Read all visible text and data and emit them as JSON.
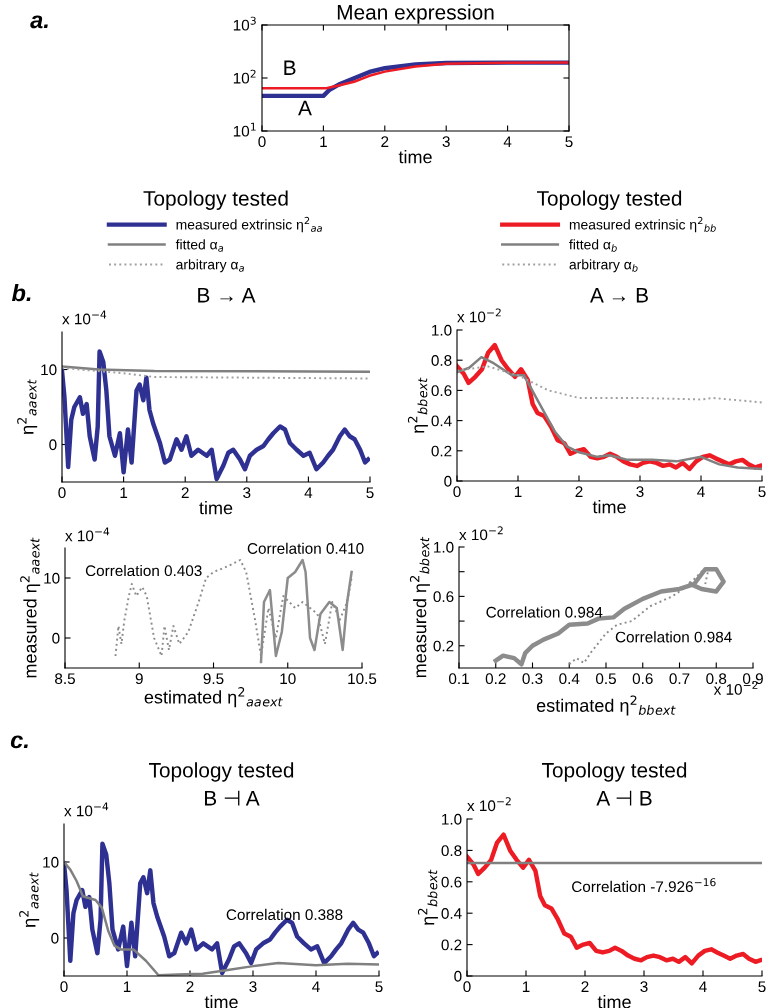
{
  "chart_data": [
    {
      "type": "line",
      "title": "Mean expression",
      "xlabel": "time",
      "log": true,
      "xlim": [
        0,
        5
      ],
      "xticks": [
        0,
        1,
        2,
        3,
        4,
        5
      ],
      "ylim": [
        10,
        1000
      ],
      "yticks": [
        {
          "value": 10,
          "label": "10$^{1}$"
        },
        {
          "value": 100,
          "label": "10$^{2}$"
        },
        {
          "value": 1000,
          "label": "10$^{3}$"
        }
      ],
      "series": [
        {
          "color": "#2e3192",
          "x": [
            0,
            1,
            1.1,
            1.25,
            1.5,
            1.75,
            2,
            2.5,
            3,
            4,
            5
          ],
          "values": [
            46,
            46,
            60,
            75,
            99,
            130,
            153,
            180,
            192,
            195,
            195
          ]
        },
        {
          "color": "#ed1c24",
          "x": [
            0,
            1.05,
            1.1,
            1.25,
            1.5,
            1.75,
            2,
            2.5,
            3,
            4,
            5
          ],
          "values": [
            64,
            64,
            66,
            72,
            85,
            110,
            132,
            165,
            185,
            193,
            197
          ]
        }
      ],
      "annotations": [
        "a.",
        "B",
        "A"
      ]
    },
    {
      "type": "line",
      "subtitle": "B → A",
      "legend_title": "Topology tested",
      "legend": "top",
      "xlabel": "time",
      "ylabel": "η$^{2}$$_{aa}$$_{ext}$",
      "xlim": [
        0,
        5
      ],
      "xticks": [
        0,
        1,
        2,
        3,
        4,
        5
      ],
      "ylim": [
        -5,
        15
      ],
      "yticks": [
        0,
        10
      ],
      "series": [
        {
          "name": "measured extrinsic η$^{2}$$_{aa}$",
          "color": "#2e3192",
          "x": [
            0,
            0.04,
            0.1,
            0.15,
            0.2,
            0.29,
            0.34,
            0.4,
            0.45,
            0.53,
            0.58,
            0.61,
            0.67,
            0.72,
            0.77,
            0.86,
            0.94,
            1.0,
            1.07,
            1.13,
            1.21,
            1.26,
            1.32,
            1.37,
            1.42,
            1.48,
            1.59,
            1.67,
            1.75,
            1.86,
            1.94,
            2.02,
            2.1,
            2.21,
            2.35,
            2.43,
            2.51,
            2.62,
            2.7,
            2.78,
            2.89,
            2.97,
            3.05,
            3.16,
            3.27,
            3.35,
            3.43,
            3.54,
            3.62,
            3.7,
            3.81,
            3.92,
            4.02,
            4.13,
            4.24,
            4.32,
            4.4,
            4.51,
            4.59,
            4.67,
            4.75,
            4.84,
            4.92,
            4.97
          ],
          "values": [
            9.8,
            6.3,
            -3.0,
            3.3,
            5.0,
            6.3,
            4.1,
            5.4,
            1.1,
            -2,
            2.4,
            12.4,
            11,
            7.2,
            1.1,
            -1.5,
            1.5,
            -3.7,
            2,
            -2.4,
            7.2,
            8,
            5.9,
            8.9,
            4.6,
            2.8,
            0.2,
            -2.4,
            -2,
            0.7,
            -0.7,
            1.1,
            -1.5,
            -0.7,
            -1.5,
            -0.7,
            -4.6,
            -2.8,
            -1.1,
            -0.7,
            -2,
            -3.3,
            -1.5,
            -0.7,
            -0.2,
            0.7,
            1.5,
            2.4,
            2,
            0.2,
            -0.7,
            -1.5,
            -1.1,
            -3.3,
            -2.4,
            -1.5,
            -0.7,
            1.1,
            2,
            1.1,
            0.7,
            -0.7,
            -2.4,
            -2
          ]
        },
        {
          "name": "fitted α$_{a}$",
          "color": "#808080",
          "x": [
            0,
            0.6,
            1.5,
            5
          ],
          "values": [
            10.4,
            10,
            9.8,
            9.7
          ]
        },
        {
          "name": "arbitrary α$_{a}$",
          "color": "#a0a0a0",
          "line_style": "dotted",
          "x": [
            0,
            1,
            1.5,
            5
          ],
          "values": [
            10.2,
            9.5,
            9.0,
            8.8
          ]
        }
      ],
      "annotations": [
        "x 10$^{−4}$",
        "b."
      ]
    },
    {
      "type": "line",
      "subtitle": "A → B",
      "legend_title": "Topology tested",
      "legend": "top",
      "xlabel": "time",
      "ylabel": "η$^{2}$$_{bb}$$_{ext}$",
      "xlim": [
        0,
        5
      ],
      "xticks": [
        0,
        1,
        2,
        3,
        4,
        5
      ],
      "ylim": [
        0,
        1.0
      ],
      "yticks": [
        0,
        0.2,
        0.4,
        0.6,
        0.8,
        {
          "value": 1.0,
          "label": "1.0"
        }
      ],
      "series": [
        {
          "name": "measured extrinsic η$^{2}$$_{bb}$",
          "color": "#ed1c24",
          "x": [
            0,
            0.11,
            0.19,
            0.3,
            0.41,
            0.51,
            0.62,
            0.73,
            0.84,
            0.95,
            1.05,
            1.16,
            1.24,
            1.32,
            1.43,
            1.54,
            1.65,
            1.76,
            1.86,
            1.97,
            2.08,
            2.19,
            2.3,
            2.41,
            2.51,
            2.62,
            2.73,
            2.84,
            2.95,
            3.05,
            3.16,
            3.27,
            3.38,
            3.49,
            3.59,
            3.7,
            3.81,
            3.92,
            4.03,
            4.14,
            4.24,
            4.35,
            4.46,
            4.57,
            4.68,
            4.78,
            4.89,
            4.97
          ],
          "values": [
            0.76,
            0.71,
            0.65,
            0.69,
            0.74,
            0.85,
            0.9,
            0.8,
            0.74,
            0.69,
            0.74,
            0.67,
            0.51,
            0.45,
            0.43,
            0.36,
            0.27,
            0.25,
            0.18,
            0.2,
            0.21,
            0.16,
            0.15,
            0.16,
            0.18,
            0.16,
            0.13,
            0.11,
            0.1,
            0.12,
            0.13,
            0.12,
            0.1,
            0.11,
            0.09,
            0.12,
            0.08,
            0.13,
            0.16,
            0.17,
            0.15,
            0.13,
            0.11,
            0.13,
            0.14,
            0.11,
            0.09,
            0.1
          ]
        },
        {
          "name": "fitted α$_{b}$",
          "color": "#808080",
          "x": [
            0,
            0.2,
            0.4,
            0.6,
            0.9,
            1.1,
            1.3,
            1.6,
            1.8,
            2.0,
            2.3,
            2.5,
            2.8,
            3.2,
            3.6,
            4.0,
            4.3,
            4.6,
            5
          ],
          "values": [
            0.72,
            0.75,
            0.82,
            0.78,
            0.7,
            0.7,
            0.55,
            0.33,
            0.23,
            0.19,
            0.16,
            0.17,
            0.14,
            0.14,
            0.13,
            0.16,
            0.11,
            0.09,
            0.08
          ]
        },
        {
          "name": "arbitrary α$_{b}$",
          "color": "#a0a0a0",
          "line_style": "dotted",
          "x": [
            0,
            0.5,
            1,
            1.5,
            2,
            2.5,
            3,
            4,
            4.2,
            5
          ],
          "values": [
            0.73,
            0.76,
            0.7,
            0.6,
            0.55,
            0.55,
            0.55,
            0.54,
            0.55,
            0.52
          ]
        }
      ],
      "annotations": [
        "x 10$^{−2}$"
      ]
    },
    {
      "type": "line",
      "xlabel": "estimated η$^{2}$$_{aa}$$_{ext}$",
      "ylabel": "measured η$^{2}$$_{aa}$$_{ext}$",
      "xlim": [
        8.5,
        10.5
      ],
      "xticks": [
        8.5,
        9,
        9.5,
        10,
        10.5
      ],
      "ylim": [
        -5,
        15
      ],
      "yticks": [
        0,
        10
      ],
      "series": [
        {
          "color": "#8c8c8c",
          "line_style": "dotted",
          "x": [
            8.84,
            8.86,
            8.88,
            8.9,
            8.93,
            8.95,
            8.98,
            9.02,
            9.05,
            9.1,
            9.15,
            9.17,
            9.2,
            9.23,
            9.27,
            9.33,
            9.4,
            9.45,
            9.5,
            9.6,
            9.68,
            9.72,
            9.78,
            9.82,
            9.87,
            9.92,
            9.97,
            10.05,
            10.1,
            10.2,
            10.25,
            10.3,
            10.35,
            10.4,
            10.43
          ],
          "values": [
            -3,
            2,
            -1,
            3,
            7,
            9,
            7,
            8.5,
            7,
            0,
            -3,
            2,
            -2,
            2,
            -1,
            1,
            6,
            10,
            11,
            12,
            13,
            11,
            3,
            -3,
            5,
            0,
            7,
            5,
            6,
            4,
            -1,
            6,
            3,
            6,
            10
          ]
        },
        {
          "color": "#8c8c8c",
          "x": [
            9.82,
            9.84,
            9.88,
            9.92,
            9.96,
            10.0,
            10.05,
            10.1,
            10.12,
            10.15,
            10.18,
            10.22,
            10.28,
            10.33,
            10.37,
            10.4,
            10.43
          ],
          "values": [
            -4,
            6,
            8,
            -3,
            1,
            10,
            11,
            13,
            11,
            0,
            -2,
            4,
            6,
            5,
            -2,
            6,
            11
          ]
        }
      ],
      "annotations": [
        "x 10$^{−4}$",
        "Correlation 0.403",
        "Correlation 0.410"
      ]
    },
    {
      "type": "line",
      "xlabel": "estimated η$^{2}$$_{bb}$$_{ext}$",
      "ylabel": "measured η$^{2}$$_{bb}$$_{ext}$",
      "xlim": [
        0.1,
        0.9
      ],
      "xticks": [
        0.1,
        0.2,
        0.3,
        0.4,
        0.5,
        0.6,
        0.7,
        0.8,
        0.9
      ],
      "ylim": [
        0.02,
        1.0
      ],
      "yticks": [
        0.2,
        {
          "value": 0.4,
          "label": null
        },
        0.6,
        {
          "value": 0.8,
          "label": null
        },
        {
          "value": 1.0,
          "label": "1.0"
        }
      ],
      "series": [
        {
          "color": "#8c8c8c",
          "x": [
            0.2,
            0.22,
            0.25,
            0.27,
            0.28,
            0.3,
            0.33,
            0.37,
            0.4,
            0.45,
            0.48,
            0.52,
            0.55,
            0.6,
            0.65,
            0.7,
            0.74,
            0.77,
            0.8,
            0.82,
            0.8,
            0.76,
            0.73
          ],
          "values": [
            0.08,
            0.12,
            0.1,
            0.05,
            0.14,
            0.2,
            0.25,
            0.3,
            0.37,
            0.38,
            0.42,
            0.43,
            0.5,
            0.58,
            0.64,
            0.66,
            0.7,
            0.82,
            0.82,
            0.72,
            0.64,
            0.66,
            0.7
          ]
        },
        {
          "color": "#8c8c8c",
          "line_style": "dotted",
          "x": [
            0.4,
            0.42,
            0.44,
            0.46,
            0.5,
            0.53,
            0.57,
            0.62,
            0.68,
            0.72,
            0.76,
            0.78,
            0.77
          ],
          "values": [
            0.05,
            0.1,
            0.06,
            0.15,
            0.3,
            0.37,
            0.4,
            0.52,
            0.6,
            0.68,
            0.8,
            0.84,
            0.7
          ]
        }
      ],
      "annotations": [
        "x 10$^{−2}$",
        "x 10$^{−2}$",
        "Correlation 0.984",
        "Correlation 0.984"
      ]
    },
    {
      "type": "line",
      "title": "Topology tested",
      "subtitle": "B ⊣ A",
      "xlabel": "time",
      "ylabel": "η$^{2}$$_{aa}$$_{ext}$",
      "xlim": [
        0,
        5
      ],
      "xticks": [
        0,
        1,
        2,
        3,
        4,
        5
      ],
      "ylim": [
        -5,
        15
      ],
      "yticks": [
        0,
        10
      ],
      "series": [
        {
          "color": "#2e3192",
          "x": [
            0,
            0.04,
            0.1,
            0.15,
            0.2,
            0.29,
            0.34,
            0.4,
            0.45,
            0.53,
            0.58,
            0.61,
            0.67,
            0.72,
            0.77,
            0.86,
            0.94,
            1.0,
            1.07,
            1.13,
            1.21,
            1.26,
            1.32,
            1.37,
            1.42,
            1.48,
            1.59,
            1.67,
            1.75,
            1.86,
            1.94,
            2.02,
            2.1,
            2.21,
            2.35,
            2.43,
            2.51,
            2.62,
            2.7,
            2.78,
            2.89,
            2.97,
            3.05,
            3.16,
            3.27,
            3.35,
            3.43,
            3.54,
            3.62,
            3.7,
            3.81,
            3.92,
            4.02,
            4.13,
            4.24,
            4.32,
            4.4,
            4.51,
            4.59,
            4.67,
            4.75,
            4.84,
            4.92,
            4.97
          ],
          "values": [
            9.8,
            6.3,
            -3.0,
            3.3,
            5.0,
            6.3,
            4.1,
            5.4,
            1.1,
            -2,
            2.4,
            12.4,
            11,
            7.2,
            1.1,
            -1.5,
            1.5,
            -3.7,
            2,
            -2.4,
            7.2,
            8,
            5.9,
            8.9,
            4.6,
            2.8,
            0.2,
            -2.4,
            -2,
            0.7,
            -0.7,
            1.1,
            -1.5,
            -0.7,
            -1.5,
            -0.7,
            -4.6,
            -2.8,
            -1.1,
            -0.7,
            -2,
            -3.3,
            -1.5,
            -0.7,
            -0.2,
            0.7,
            1.5,
            2.4,
            2,
            0.2,
            -0.7,
            -1.5,
            -1.1,
            -3.3,
            -2.4,
            -1.5,
            -0.7,
            1.1,
            2,
            1.1,
            0.7,
            -0.7,
            -2.4,
            -2
          ]
        },
        {
          "color": "#808080",
          "x": [
            0,
            0.1,
            0.2,
            0.3,
            0.5,
            0.6,
            0.7,
            0.8,
            0.9,
            1.1,
            1.3,
            1.5,
            1.8,
            2.2,
            2.6,
            3,
            3.4,
            4,
            4.5,
            5
          ],
          "values": [
            10,
            9,
            7.5,
            5.5,
            5,
            4,
            1,
            -1,
            -1.5,
            -1.5,
            -3,
            -4.9,
            -4.8,
            -4.7,
            -4.2,
            -3.7,
            -3.3,
            -3.6,
            -3.4,
            -3.5
          ]
        }
      ],
      "annotations": [
        "x 10$^{−4}$",
        "c.",
        "Correlation 0.388"
      ]
    },
    {
      "type": "line",
      "title": "Topology tested",
      "subtitle": "A ⊣ B",
      "xlabel": "time",
      "ylabel": "η$^{2}$$_{bb}$$_{ext}$",
      "xlim": [
        0,
        5
      ],
      "xticks": [
        0,
        1,
        2,
        3,
        4,
        5
      ],
      "ylim": [
        0,
        1.0
      ],
      "yticks": [
        0,
        0.2,
        0.4,
        0.6,
        0.8,
        {
          "value": 1.0,
          "label": "1.0"
        }
      ],
      "series": [
        {
          "color": "#ed1c24",
          "x": [
            0,
            0.11,
            0.19,
            0.3,
            0.41,
            0.51,
            0.62,
            0.73,
            0.84,
            0.95,
            1.05,
            1.16,
            1.24,
            1.32,
            1.43,
            1.54,
            1.65,
            1.76,
            1.86,
            1.97,
            2.08,
            2.19,
            2.3,
            2.41,
            2.51,
            2.62,
            2.73,
            2.84,
            2.95,
            3.05,
            3.16,
            3.27,
            3.38,
            3.49,
            3.59,
            3.7,
            3.81,
            3.92,
            4.03,
            4.14,
            4.24,
            4.35,
            4.46,
            4.57,
            4.68,
            4.78,
            4.89,
            4.97
          ],
          "values": [
            0.76,
            0.71,
            0.65,
            0.69,
            0.74,
            0.85,
            0.9,
            0.8,
            0.74,
            0.69,
            0.74,
            0.67,
            0.51,
            0.45,
            0.43,
            0.36,
            0.27,
            0.25,
            0.18,
            0.2,
            0.21,
            0.16,
            0.15,
            0.16,
            0.18,
            0.16,
            0.13,
            0.11,
            0.1,
            0.12,
            0.13,
            0.12,
            0.1,
            0.11,
            0.09,
            0.12,
            0.08,
            0.13,
            0.16,
            0.17,
            0.15,
            0.13,
            0.11,
            0.13,
            0.14,
            0.11,
            0.09,
            0.1
          ]
        },
        {
          "color": "#808080",
          "x": [
            0,
            5
          ],
          "values": [
            0.72,
            0.72
          ]
        }
      ],
      "annotations": [
        "x 10$^{−2}$",
        "Correlation -7.926$^{−16}$"
      ]
    }
  ]
}
